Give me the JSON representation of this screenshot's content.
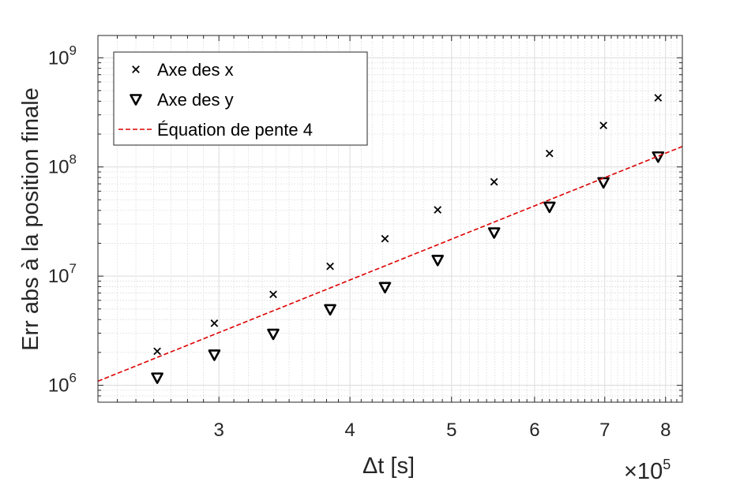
{
  "chart_data": {
    "type": "scatter",
    "xscale": "log",
    "yscale": "log",
    "xlabel": "Δt [s]",
    "ylabel": "Err abs à la position finale",
    "x_exponent_label": "×10",
    "x_exponent": "5",
    "x_multiplier": 100000,
    "xlim": [
      230000,
      830000
    ],
    "ylim": [
      700000,
      1600000000
    ],
    "x_ticks": [
      300000,
      400000,
      500000,
      600000,
      700000,
      800000
    ],
    "x_tick_labels": [
      "3",
      "4",
      "5",
      "6",
      "7",
      "8"
    ],
    "y_ticks": [
      1000000,
      10000000,
      100000000,
      1000000000
    ],
    "y_tick_base": "10",
    "y_tick_exponents": [
      "6",
      "7",
      "8",
      "9"
    ],
    "grid": true,
    "minor_grid": true,
    "legend_position": "top-left",
    "series": [
      {
        "name": "Axe des x",
        "marker": "x",
        "color": "#000000",
        "x": [
          262000,
          297000,
          338000,
          383000,
          432000,
          485000,
          549000,
          620000,
          698000,
          787000
        ],
        "y": [
          2050000,
          3700000,
          6800000,
          12300000,
          22000000,
          40500000,
          73000000,
          133000000,
          240000000,
          430000000
        ]
      },
      {
        "name": "Axe des y",
        "marker": "triangle-down",
        "color": "#000000",
        "x": [
          262000,
          297000,
          338000,
          383000,
          432000,
          485000,
          549000,
          620000,
          698000,
          787000
        ],
        "y": [
          1170000,
          1900000,
          2950000,
          4950000,
          7900000,
          14000000,
          25000000,
          43000000,
          72000000,
          124000000
        ]
      },
      {
        "name": "Équation de pente 4",
        "marker": "dashed-line",
        "color": "#dd0000",
        "x": [
          230000,
          830000
        ],
        "y": [
          1090000,
          154000000
        ]
      }
    ]
  }
}
